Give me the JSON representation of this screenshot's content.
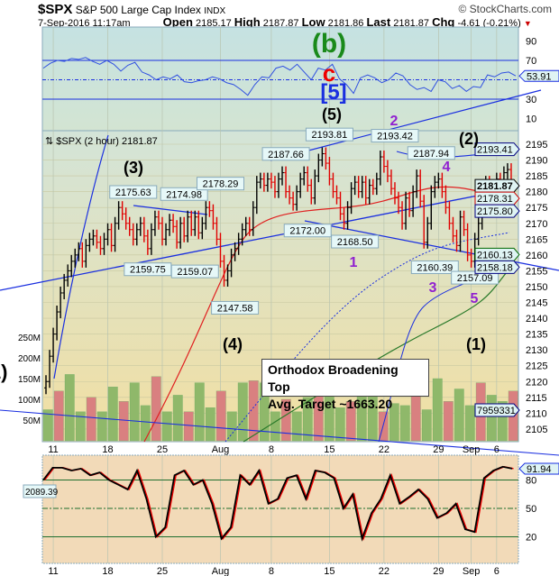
{
  "header": {
    "symbol": "$SPX",
    "name": "S&P 500 Large Cap Index",
    "exchange": "INDX",
    "brand": "© StockCharts.com",
    "datetime": "7-Sep-2016 11:17am",
    "open_label": "Open",
    "open": "2185.17",
    "high_label": "High",
    "high": "2187.87",
    "low_label": "Low",
    "low": "2181.86",
    "last_label": "Last",
    "last": "2181.87",
    "chg_label": "Chg",
    "chg": "-4.61 (-0.21%)",
    "chg_arrow": "▼"
  },
  "chart_data": {
    "type": "candlestick",
    "legend": "⇅ $SPX (2 hour) 2181.87",
    "price_axis": {
      "ylim": [
        2102,
        2197
      ],
      "ticks": [
        2195,
        2190,
        2185,
        2180,
        2175,
        2170,
        2165,
        2160,
        2155,
        2150,
        2145,
        2140,
        2135,
        2130,
        2125,
        2120,
        2115,
        2110,
        2105
      ]
    },
    "x_ticks": [
      {
        "label": "11",
        "bar": 2
      },
      {
        "label": "18",
        "bar": 17
      },
      {
        "label": "25",
        "bar": 32
      },
      {
        "label": "Aug",
        "bar": 48
      },
      {
        "label": "8",
        "bar": 62
      },
      {
        "label": "15",
        "bar": 78
      },
      {
        "label": "22",
        "bar": 93
      },
      {
        "label": "29",
        "bar": 108
      },
      {
        "label": "Sep",
        "bar": 117
      },
      {
        "label": "6",
        "bar": 124
      }
    ],
    "closes": [
      2120,
      2128,
      2135,
      2142,
      2148,
      2152,
      2155,
      2158,
      2160,
      2162,
      2158,
      2163,
      2165,
      2166,
      2164,
      2162,
      2165,
      2168,
      2163,
      2170,
      2175,
      2173,
      2170,
      2168,
      2165,
      2168,
      2170,
      2166,
      2162,
      2168,
      2172,
      2170,
      2165,
      2168,
      2171,
      2169,
      2164,
      2170,
      2166,
      2172,
      2168,
      2172,
      2167,
      2170,
      2175,
      2174,
      2170,
      2165,
      2158,
      2152,
      2155,
      2160,
      2162,
      2165,
      2168,
      2170,
      2168,
      2175,
      2183,
      2184,
      2182,
      2184,
      2183,
      2180,
      2184,
      2186,
      2180,
      2178,
      2176,
      2180,
      2184,
      2186,
      2182,
      2178,
      2185,
      2190,
      2192,
      2189,
      2184,
      2180,
      2178,
      2173,
      2170,
      2175,
      2181,
      2183,
      2180,
      2183,
      2178,
      2182,
      2181,
      2184,
      2191,
      2188,
      2185,
      2181,
      2178,
      2175,
      2170,
      2178,
      2174,
      2180,
      2185,
      2177,
      2164,
      2170,
      2180,
      2183,
      2184,
      2180,
      2175,
      2170,
      2166,
      2163,
      2172,
      2168,
      2160,
      2158,
      2165,
      2170,
      2176,
      2183,
      2178,
      2181,
      2184,
      2183,
      2186,
      2187,
      2182
    ],
    "price_labels": [
      {
        "text": "2175.63",
        "bar": 24,
        "price": 2175.63,
        "pos": "above"
      },
      {
        "text": "2174.98",
        "bar": 38,
        "price": 2174.98,
        "pos": "above"
      },
      {
        "text": "2178.29",
        "bar": 48,
        "price": 2178.29,
        "pos": "above"
      },
      {
        "text": "2159.75",
        "bar": 28,
        "price": 2159.75,
        "pos": "below"
      },
      {
        "text": "2159.07",
        "bar": 41,
        "price": 2159.07,
        "pos": "below"
      },
      {
        "text": "2147.58",
        "bar": 52,
        "price": 2147.58,
        "pos": "below"
      },
      {
        "text": "2187.66",
        "bar": 66,
        "price": 2187.66,
        "pos": "above"
      },
      {
        "text": "2172.00",
        "bar": 72,
        "price": 2172.0,
        "pos": "below"
      },
      {
        "text": "2193.81",
        "bar": 78,
        "price": 2193.81,
        "pos": "above"
      },
      {
        "text": "2168.50",
        "bar": 85,
        "price": 2168.5,
        "pos": "below"
      },
      {
        "text": "2193.42",
        "bar": 96,
        "price": 2193.42,
        "pos": "above"
      },
      {
        "text": "2187.94",
        "bar": 106,
        "price": 2187.94,
        "pos": "above"
      },
      {
        "text": "2160.39",
        "bar": 107,
        "price": 2160.39,
        "pos": "below"
      },
      {
        "text": "2157.09",
        "bar": 118,
        "price": 2157.09,
        "pos": "below"
      }
    ],
    "right_tags": [
      {
        "text": "2193.41",
        "color": "#000080"
      },
      {
        "text": "2181.87",
        "color": "#000000"
      },
      {
        "text": "2178.31",
        "color": "#cc0000"
      },
      {
        "text": "2175.80",
        "color": "#000080"
      },
      {
        "text": "2160.13",
        "color": "#006600"
      },
      {
        "text": "2158.18",
        "color": "#000080"
      },
      {
        "text": "7959331",
        "color": "#000080"
      }
    ],
    "volume_axis": {
      "ticks": [
        "250M",
        "200M",
        "150M",
        "100M",
        "50M"
      ]
    },
    "volume": [
      75,
      120,
      160,
      70,
      105,
      70,
      130,
      95,
      140,
      85,
      155,
      70,
      110,
      70,
      140,
      80,
      120,
      70,
      140,
      145,
      140,
      70,
      100,
      70,
      105,
      140,
      125,
      80,
      95,
      110,
      120,
      70,
      90,
      85,
      130,
      75,
      150,
      95,
      125,
      85,
      140,
      110,
      95,
      120
    ],
    "rsi": {
      "ticks": [
        "90",
        "70",
        "30",
        "10"
      ],
      "last": "53.91",
      "values": [
        62,
        67,
        70,
        69,
        72,
        71,
        73,
        69,
        66,
        70,
        66,
        59,
        65,
        68,
        58,
        55,
        50,
        53,
        51,
        55,
        48,
        47,
        49,
        50,
        53,
        51,
        47,
        45,
        40,
        34,
        45,
        53,
        52,
        62,
        64,
        60,
        66,
        58,
        50,
        62,
        60,
        66,
        51,
        45,
        36,
        52,
        55,
        52,
        47,
        50,
        57,
        54,
        45,
        40,
        42,
        38,
        50,
        48,
        41,
        44,
        38,
        43,
        42,
        55,
        53,
        57,
        58,
        54
      ]
    },
    "stoch": {
      "ticks": [
        "80",
        "50",
        "20"
      ],
      "last": "91.94",
      "left_tag": "2089.39",
      "values": [
        80,
        93,
        93,
        90,
        92,
        85,
        88,
        80,
        75,
        70,
        90,
        60,
        20,
        30,
        85,
        90,
        75,
        80,
        55,
        18,
        30,
        85,
        75,
        90,
        55,
        60,
        82,
        85,
        60,
        90,
        88,
        82,
        50,
        65,
        18,
        45,
        60,
        85,
        55,
        62,
        70,
        60,
        40,
        45,
        55,
        28,
        25,
        82,
        90,
        94,
        92
      ]
    },
    "annotations": [
      "(b)",
      "c",
      "[5]",
      "(5)",
      "2",
      "(2)",
      "(3)",
      "4",
      "1",
      "3",
      "5",
      "(1)",
      "(4)",
      "(1)"
    ],
    "callout": {
      "line1": "Orthodox Broadening Top",
      "line2": "Avg. Target ~1663.20"
    },
    "colors": {
      "up": "#000000",
      "down": "#e00000",
      "vol_up": "#8fb86a",
      "vol_down": "#d98080",
      "ma_red": "#e02020",
      "ma_green": "#2a7a2a",
      "trend": "#1a2fe0",
      "rsi": "#3050e0"
    }
  }
}
